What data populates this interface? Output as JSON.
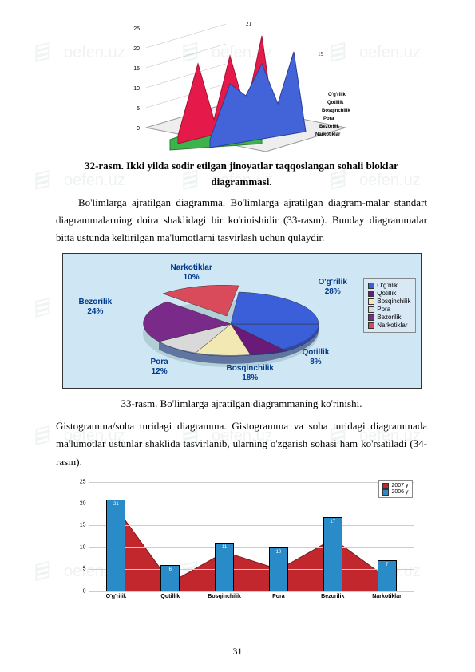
{
  "watermark": {
    "text": "oefen.uz"
  },
  "page_number": "31",
  "caption32": "32-rasm. Ikki yilda sodir etilgan jinoyatlar taqqoslangan sohali bloklar diagrammasi.",
  "para1": "Bo'limlarga ajratilgan diagramma. Bo'limlarga ajratilgan diagram-malar standart diagrammalarning doira shaklidagi bir ko'rinishidir (33-rasm). Bunday diagrammalar bitta ustunda keltirilgan ma'lumotlarni tasvirlash uchun qulaydir.",
  "caption33": "33-rasm. Bo'limlarga ajratilgan diagrammaning ko'rinishi.",
  "para2": "Gistogramma/soha turidagi diagramma. Gistogramma va soha turidagi diagrammada ma'lumotlar ustunlar shaklida tasvirlanib, ularning o'zgarish sohasi ham ko'rsatiladi (34-rasm).",
  "chart3d": {
    "type": "3d-area-bar",
    "y_ticks": [
      "0",
      "5",
      "10",
      "15",
      "20",
      "25"
    ],
    "depth_categories": [
      "Narkotiklar",
      "Bezorilik",
      "Pora",
      "Bosqinchilik",
      "Qotillik",
      "O'g'rilik"
    ],
    "series": [
      {
        "color": "#3cb44b"
      },
      {
        "color": "#e6194b"
      },
      {
        "color": "#4363d8"
      }
    ]
  },
  "pie": {
    "type": "pie-3d",
    "background": "#cfe6f5",
    "slices": [
      {
        "label": "O'g'rilik",
        "value": "28%",
        "color": "#3a5fd9",
        "lx": 320,
        "ly": 30
      },
      {
        "label": "Qotillik",
        "value": "8%",
        "color": "#6a1b7a",
        "lx": 300,
        "ly": 118
      },
      {
        "label": "Bosqinchilik",
        "value": "18%",
        "color": "#f2e8b3",
        "lx": 205,
        "ly": 138
      },
      {
        "label": "Pora",
        "value": "12%",
        "color": "#d9d9d9",
        "lx": 110,
        "ly": 130
      },
      {
        "label": "Bezorilik",
        "value": "24%",
        "color": "#7a2b8a",
        "lx": 20,
        "ly": 55
      },
      {
        "label": "Narkotiklar",
        "value": "10%",
        "color": "#d94a5a",
        "lx": 135,
        "ly": 12
      }
    ],
    "legend": [
      {
        "label": "O'g'rilik",
        "color": "#3a5fd9"
      },
      {
        "label": "Qotillik",
        "color": "#6a1b7a"
      },
      {
        "label": "Bosqinchilik",
        "color": "#f2e8b3"
      },
      {
        "label": "Pora",
        "color": "#d9d9d9"
      },
      {
        "label": "Bezorilik",
        "color": "#7a2b8a"
      },
      {
        "label": "Narkotiklar",
        "color": "#d94a5a"
      }
    ]
  },
  "histogram": {
    "type": "bar+area",
    "ylim": [
      0,
      25
    ],
    "yticks": [
      0,
      5,
      10,
      15,
      20,
      25
    ],
    "categories": [
      "O'g'rilik",
      "Qotillik",
      "Bosqinchilik",
      "Pora",
      "Bezorilik",
      "Narkotiklar"
    ],
    "bar_color": "#2a8bc9",
    "area_color": "#c1272d",
    "bar_values": [
      21,
      6,
      11,
      10,
      17,
      7
    ],
    "area_values": [
      19,
      2,
      9,
      5,
      12,
      3
    ],
    "legend": [
      {
        "label": "2007 y",
        "color": "#c1272d"
      },
      {
        "label": "2006 y",
        "color": "#2a8bc9"
      }
    ]
  }
}
